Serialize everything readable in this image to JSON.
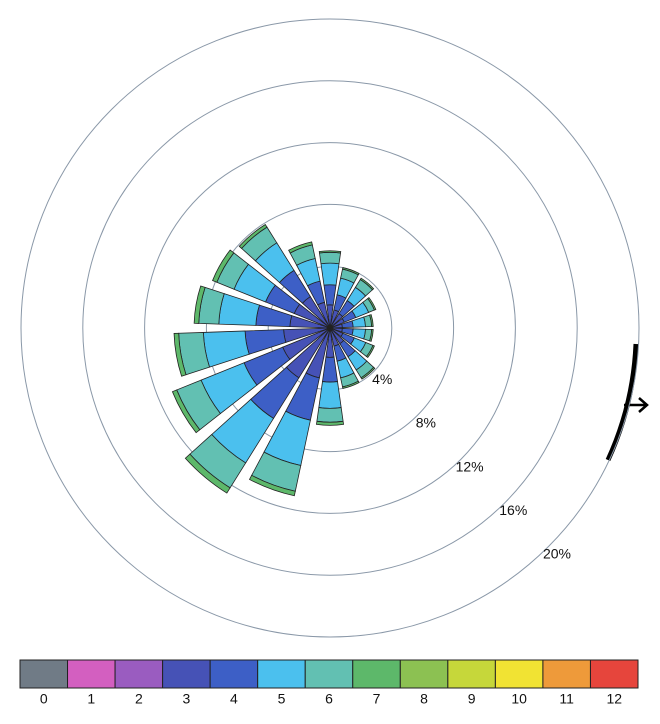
{
  "chart_data": {
    "type": "windrose",
    "categories": [
      null,
      null,
      null,
      null,
      null,
      null,
      null,
      null,
      null,
      null,
      null,
      null,
      null,
      null,
      null,
      null,
      null,
      null
    ],
    "rlim": [
      0,
      20
    ],
    "rticks": [
      {
        "value": 4,
        "label": "4%"
      },
      {
        "value": 8,
        "label": "8%"
      },
      {
        "value": 12,
        "label": "12%"
      },
      {
        "value": 16,
        "label": "16%"
      },
      {
        "value": 20,
        "label": "20%"
      }
    ],
    "series": [
      {
        "name": "0",
        "color": "#707b86",
        "values": [
          0,
          0,
          0,
          0,
          0,
          0,
          0,
          0,
          0,
          0,
          0,
          0,
          0,
          0,
          0,
          0,
          0,
          0
        ]
      },
      {
        "name": "1",
        "color": "#d35fc0",
        "values": [
          0,
          0,
          0,
          0,
          0,
          0,
          0,
          0,
          0,
          0,
          0,
          0,
          0,
          0,
          0,
          0,
          0,
          0
        ]
      },
      {
        "name": "2",
        "color": "#9a5cc0",
        "values": [
          0,
          0,
          0,
          0,
          0,
          0,
          0,
          0,
          0,
          0,
          0,
          0,
          0,
          0,
          0,
          0,
          0,
          0
        ]
      },
      {
        "name": "3",
        "color": "#4652b6",
        "values": [
          1.5,
          1.2,
          1.1,
          1.0,
          0.8,
          0.8,
          0.9,
          1.2,
          1.2,
          1.9,
          3.3,
          3.8,
          3.3,
          3.0,
          2.6,
          2.5,
          2.4,
          1.7
        ]
      },
      {
        "name": "4",
        "color": "#3d5fc6",
        "values": [
          1.3,
          1.0,
          1.0,
          0.8,
          0.7,
          0.7,
          0.8,
          1.0,
          1.0,
          1.6,
          2.8,
          3.1,
          2.7,
          2.5,
          2.2,
          2.0,
          2.0,
          1.4
        ]
      },
      {
        "name": "5",
        "color": "#4bc0ee",
        "values": [
          1.4,
          1.1,
          1.0,
          0.9,
          0.8,
          0.8,
          0.8,
          1.0,
          1.1,
          1.7,
          3.0,
          3.4,
          3.0,
          2.7,
          2.4,
          2.2,
          2.1,
          1.5
        ]
      },
      {
        "name": "6",
        "color": "#62c0b2",
        "values": [
          0.7,
          0.6,
          0.6,
          0.4,
          0.4,
          0.4,
          0.5,
          0.6,
          0.6,
          0.9,
          1.7,
          1.9,
          1.7,
          1.6,
          1.3,
          1.2,
          1.2,
          0.9
        ]
      },
      {
        "name": "7",
        "color": "#5db86a",
        "values": [
          0.1,
          0.1,
          0.1,
          0.1,
          0.1,
          0.1,
          0.1,
          0.1,
          0.1,
          0.2,
          0.3,
          0.4,
          0.3,
          0.3,
          0.3,
          0.3,
          0.2,
          0.2
        ]
      },
      {
        "name": "8",
        "color": "#8cc152",
        "values": [
          0,
          0,
          0,
          0,
          0,
          0,
          0,
          0,
          0,
          0,
          0,
          0,
          0,
          0,
          0,
          0,
          0,
          0
        ]
      },
      {
        "name": "9",
        "color": "#c6d73a",
        "values": [
          0,
          0,
          0,
          0,
          0,
          0,
          0,
          0,
          0,
          0,
          0,
          0,
          0,
          0,
          0,
          0,
          0,
          0
        ]
      },
      {
        "name": "10",
        "color": "#f1e333",
        "values": [
          0,
          0,
          0,
          0,
          0,
          0,
          0,
          0,
          0,
          0,
          0,
          0,
          0,
          0,
          0,
          0,
          0,
          0
        ]
      },
      {
        "name": "11",
        "color": "#ee9a3a",
        "values": [
          0,
          0,
          0,
          0,
          0,
          0,
          0,
          0,
          0,
          0,
          0,
          0,
          0,
          0,
          0,
          0,
          0,
          0
        ]
      },
      {
        "name": "12",
        "color": "#e6453c",
        "values": [
          0,
          0,
          0,
          0,
          0,
          0,
          0,
          0,
          0,
          0,
          0,
          0,
          0,
          0,
          0,
          0,
          0,
          0
        ]
      }
    ]
  }
}
